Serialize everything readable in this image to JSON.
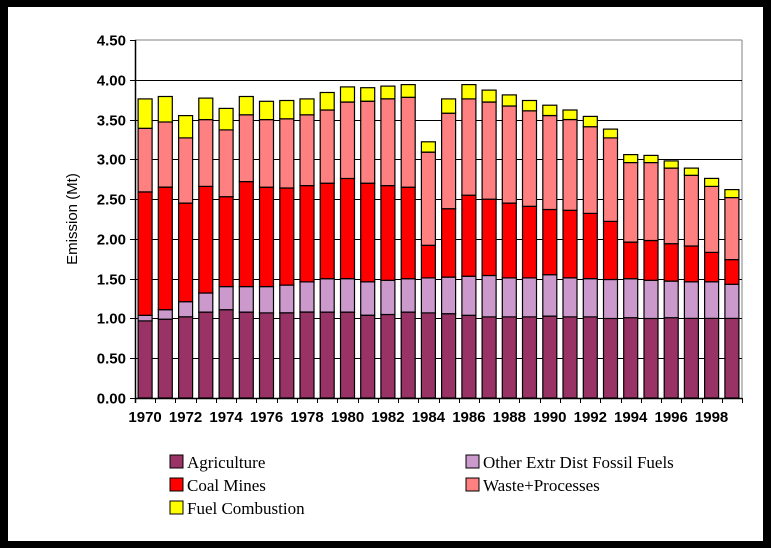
{
  "chart_data": {
    "type": "bar",
    "stacked": true,
    "title": "",
    "xlabel": "",
    "ylabel": "Emission (Mt)",
    "ylim": [
      0,
      4.5
    ],
    "yticks": [
      "0.00",
      "0.50",
      "1.00",
      "1.50",
      "2.00",
      "2.50",
      "3.00",
      "3.50",
      "4.00",
      "4.50"
    ],
    "ytick_values": [
      0,
      0.5,
      1.0,
      1.5,
      2.0,
      2.5,
      3.0,
      3.5,
      4.0,
      4.5
    ],
    "grid": true,
    "legend_position": "bottom",
    "categories": [
      "1970",
      "1971",
      "1972",
      "1973",
      "1974",
      "1975",
      "1976",
      "1977",
      "1978",
      "1979",
      "1980",
      "1981",
      "1982",
      "1983",
      "1984",
      "1985",
      "1986",
      "1987",
      "1988",
      "1989",
      "1990",
      "1991",
      "1992",
      "1993",
      "1994",
      "1995",
      "1996",
      "1997",
      "1998",
      "1999"
    ],
    "xtick_labels": [
      "1970",
      "1972",
      "1974",
      "1976",
      "1978",
      "1980",
      "1982",
      "1984",
      "1986",
      "1988",
      "1990",
      "1992",
      "1994",
      "1996",
      "1998"
    ],
    "series": [
      {
        "name": "Agriculture",
        "color": "#993366",
        "values": [
          0.97,
          0.99,
          1.02,
          1.08,
          1.11,
          1.08,
          1.07,
          1.07,
          1.08,
          1.08,
          1.08,
          1.04,
          1.05,
          1.08,
          1.07,
          1.06,
          1.04,
          1.02,
          1.02,
          1.02,
          1.03,
          1.02,
          1.02,
          1.0,
          1.01,
          1.0,
          1.01,
          1.0,
          1.0,
          1.0
        ]
      },
      {
        "name": "Other Extr Dist Fossil Fuels",
        "color": "#CC99CC",
        "values": [
          0.07,
          0.12,
          0.19,
          0.24,
          0.29,
          0.32,
          0.33,
          0.35,
          0.38,
          0.42,
          0.42,
          0.42,
          0.43,
          0.42,
          0.44,
          0.46,
          0.49,
          0.52,
          0.49,
          0.49,
          0.52,
          0.49,
          0.48,
          0.49,
          0.49,
          0.48,
          0.46,
          0.46,
          0.46,
          0.43
        ]
      },
      {
        "name": "Coal Mines",
        "color": "#FF0000",
        "values": [
          1.55,
          1.54,
          1.24,
          1.34,
          1.13,
          1.32,
          1.25,
          1.22,
          1.21,
          1.2,
          1.26,
          1.24,
          1.19,
          1.15,
          0.41,
          0.86,
          1.02,
          0.96,
          0.94,
          0.9,
          0.82,
          0.85,
          0.82,
          0.73,
          0.46,
          0.5,
          0.47,
          0.45,
          0.37,
          0.31
        ]
      },
      {
        "name": "Waste+Processes",
        "color": "#FF8080",
        "values": [
          0.8,
          0.82,
          0.82,
          0.84,
          0.84,
          0.84,
          0.85,
          0.87,
          0.89,
          0.92,
          0.96,
          1.03,
          1.09,
          1.13,
          1.17,
          1.2,
          1.21,
          1.22,
          1.22,
          1.2,
          1.18,
          1.14,
          1.09,
          1.05,
          1.0,
          0.98,
          0.95,
          0.89,
          0.83,
          0.78
        ]
      },
      {
        "name": "Fuel Combustion",
        "color": "#FFFF00",
        "values": [
          0.37,
          0.32,
          0.28,
          0.27,
          0.27,
          0.23,
          0.23,
          0.23,
          0.2,
          0.22,
          0.19,
          0.17,
          0.16,
          0.16,
          0.13,
          0.18,
          0.18,
          0.15,
          0.14,
          0.13,
          0.13,
          0.12,
          0.13,
          0.11,
          0.1,
          0.09,
          0.09,
          0.09,
          0.1,
          0.1
        ]
      }
    ],
    "legend_order": [
      "Agriculture",
      "Other Extr Dist Fossil Fuels",
      "Coal Mines",
      "Waste+Processes",
      "Fuel Combustion"
    ]
  }
}
